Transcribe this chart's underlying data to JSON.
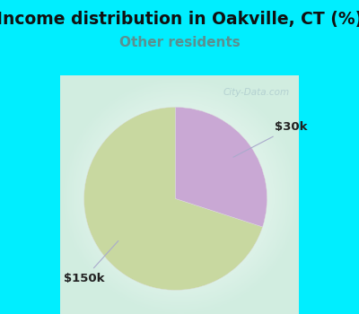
{
  "title": "Income distribution in Oakville, CT (%)",
  "subtitle": "Other residents",
  "slices": [
    0.7,
    0.3
  ],
  "labels": [
    "$150k",
    "$30k"
  ],
  "colors": [
    "#c8d8a0",
    "#c9a8d4"
  ],
  "background_cyan": "#00eeff",
  "title_fontsize": 13.5,
  "subtitle_fontsize": 11,
  "subtitle_color": "#5a9090",
  "label_fontsize": 9.5,
  "start_angle": 90,
  "watermark": "City-Data.com",
  "chart_bg": "#e8f5ee"
}
